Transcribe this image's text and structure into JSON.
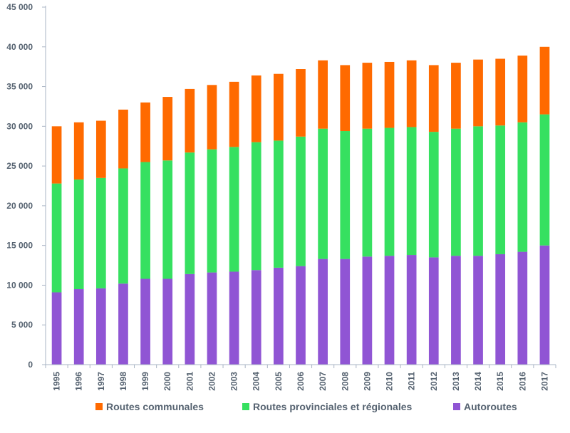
{
  "chart_data": {
    "type": "bar",
    "stacked": true,
    "title": "",
    "xlabel": "",
    "ylabel": "",
    "ylim": [
      0,
      45000
    ],
    "yticks": [
      0,
      5000,
      10000,
      15000,
      20000,
      25000,
      30000,
      35000,
      40000,
      45000
    ],
    "ytick_labels": [
      "0",
      "5 000",
      "10 000",
      "15 000",
      "20 000",
      "25 000",
      "30 000",
      "35 000",
      "40 000",
      "45 000"
    ],
    "grid": false,
    "legend_position": "bottom",
    "categories": [
      "1995",
      "1996",
      "1997",
      "1998",
      "1999",
      "2000",
      "2001",
      "2002",
      "2003",
      "2004",
      "2005",
      "2006",
      "2007",
      "2008",
      "2009",
      "2010",
      "2011",
      "2012",
      "2013",
      "2014",
      "2015",
      "2016",
      "2017"
    ],
    "series": [
      {
        "name": "Autoroutes",
        "color": "#9055d4",
        "values": [
          9100,
          9500,
          9600,
          10200,
          10800,
          10800,
          11400,
          11600,
          11700,
          11900,
          12200,
          12400,
          13300,
          13300,
          13600,
          13700,
          13800,
          13500,
          13700,
          13700,
          13900,
          14200,
          15000
        ]
      },
      {
        "name": "Routes provinciales et régionales",
        "color": "#36e060",
        "values": [
          13700,
          13800,
          13900,
          14500,
          14700,
          14900,
          15300,
          15500,
          15700,
          16100,
          16000,
          16300,
          16400,
          16100,
          16100,
          16100,
          16100,
          15800,
          16000,
          16300,
          16200,
          16300,
          16500
        ]
      },
      {
        "name": "Routes communales",
        "color": "#ff6a00",
        "values": [
          7200,
          7200,
          7200,
          7400,
          7500,
          8000,
          8000,
          8100,
          8200,
          8400,
          8400,
          8500,
          8600,
          8300,
          8300,
          8300,
          8400,
          8400,
          8300,
          8400,
          8400,
          8400,
          8500
        ]
      }
    ],
    "legend_order": [
      "Routes communales",
      "Routes provinciales et régionales",
      "Autoroutes"
    ]
  },
  "colors": {
    "axis": "#a9b4c4",
    "text": "#556270"
  }
}
